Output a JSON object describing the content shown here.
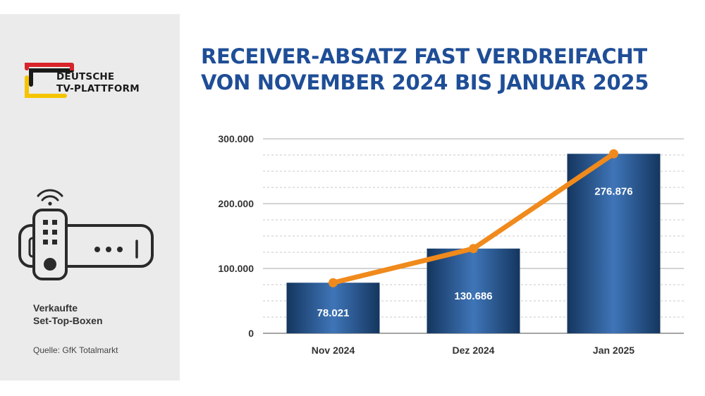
{
  "brand": {
    "line1": "DEUTSCHE",
    "line2": "TV-PLATTFORM"
  },
  "caption": {
    "line1": "Verkaufte",
    "line2": "Set-Top-Boxen"
  },
  "source": "Quelle: GfK Totalmarkt",
  "colors": {
    "title": "#1f4e97",
    "bar_dark": "#14365f",
    "bar_light": "#3f75b8",
    "line": "#f08a1c",
    "logo_red": "#d8232a",
    "logo_yellow": "#f5c400",
    "logo_black": "#1a1a1a"
  },
  "icons": [
    "deutsche-tv-plattform-logo",
    "set-top-box-remote-wifi-icon"
  ],
  "chart_data": {
    "type": "bar",
    "title": "RECEIVER-ABSATZ FAST VERDREIFACHT VON NOVEMBER 2024 BIS JANUAR 2025",
    "title_lines": [
      "RECEIVER-ABSATZ FAST VERDREIFACHT",
      "VON NOVEMBER 2024 BIS JANUAR 2025"
    ],
    "categories": [
      "Nov 2024",
      "Dez 2024",
      "Jan 2025"
    ],
    "values": [
      78021,
      130686,
      276876
    ],
    "value_labels": [
      "78.021",
      "130.686",
      "276.876"
    ],
    "overlay_line": true,
    "ylim": [
      0,
      300000
    ],
    "yticks": [
      0,
      100000,
      200000,
      300000
    ],
    "ytick_labels": [
      "0",
      "100.000",
      "200.000",
      "300.000"
    ],
    "grid": true,
    "legend": "none"
  }
}
